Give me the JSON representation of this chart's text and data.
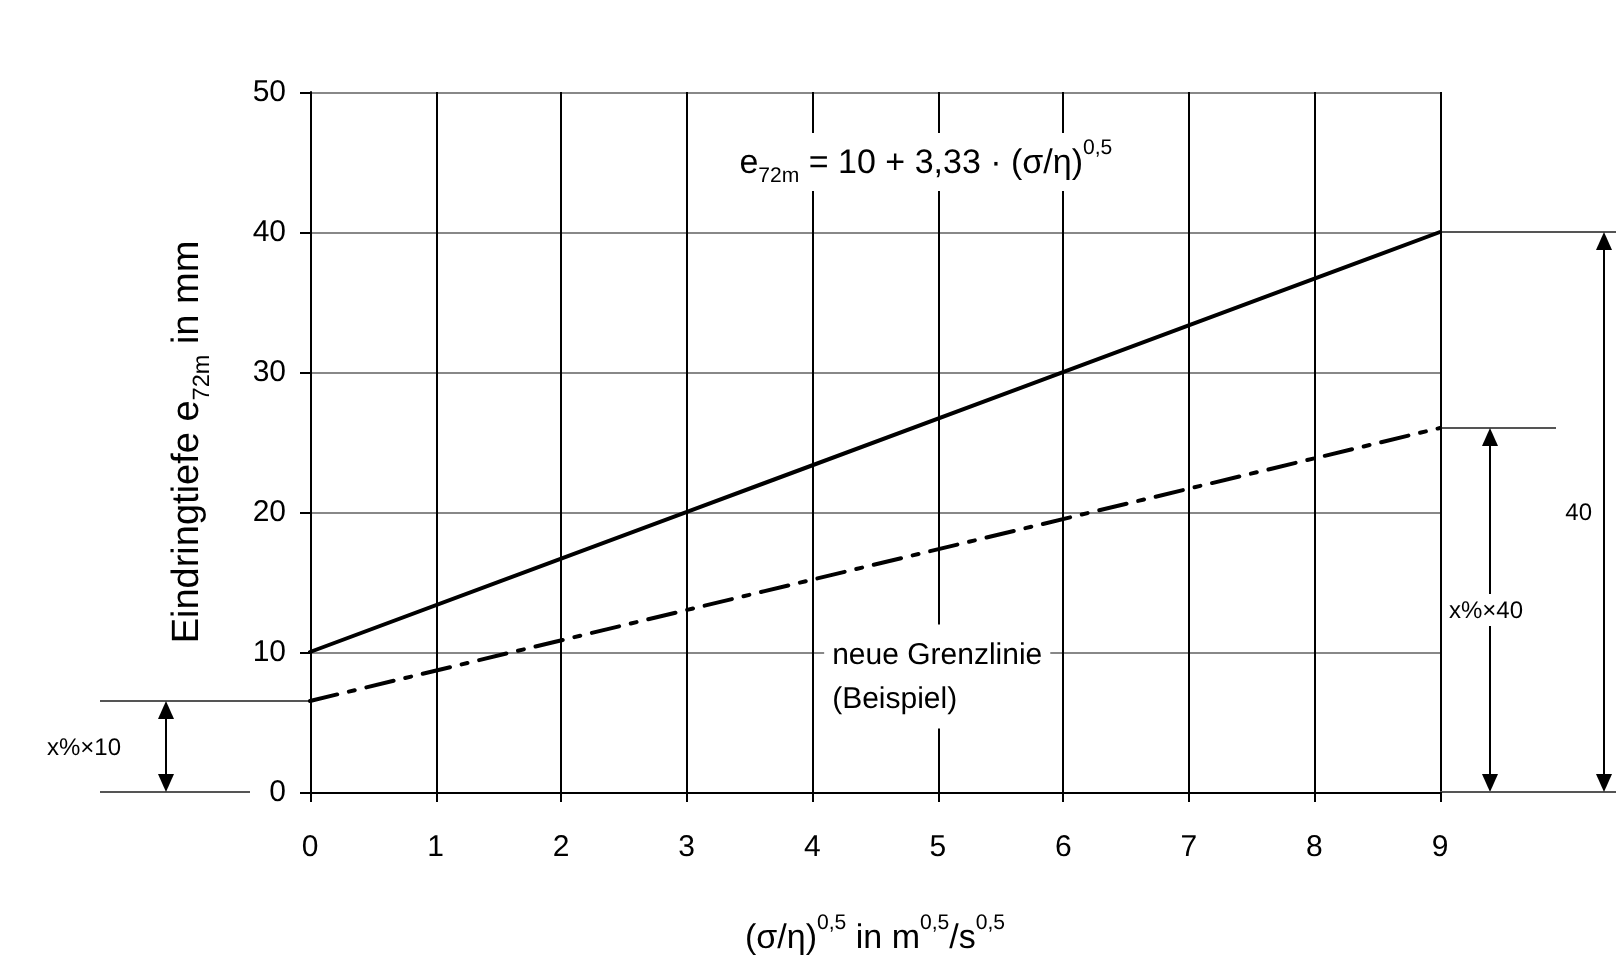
{
  "chart_data": {
    "type": "line",
    "xlabel": "(σ/η)$^{0,5}$ in m$^{0,5}$/s$^{0,5}$",
    "ylabel": "Eindringtiefe e$_{72m}$ in mm",
    "series": [
      {
        "color": "#000000",
        "line_style": "solid",
        "values": [
          10,
          40
        ]
      },
      {
        "color": "#000000",
        "line_style": "dashed",
        "values": [
          6.5,
          26
        ]
      }
    ],
    "x": [
      0,
      9
    ],
    "xlim": [
      0,
      9
    ],
    "ylim": [
      0,
      50
    ],
    "xticks": [
      0,
      1,
      2,
      3,
      4,
      5,
      6,
      7,
      8,
      9
    ],
    "yticks": [
      0,
      10,
      20,
      30,
      40,
      50
    ],
    "grid": true,
    "marker": "none",
    "annotations": [
      "e$_{72m}$ = 10 + 3,33 · (σ/η)$^{0,5}$",
      "neue Grenzlinie\n(Beispiel)",
      "x%×10",
      "x%×40",
      "40"
    ]
  }
}
